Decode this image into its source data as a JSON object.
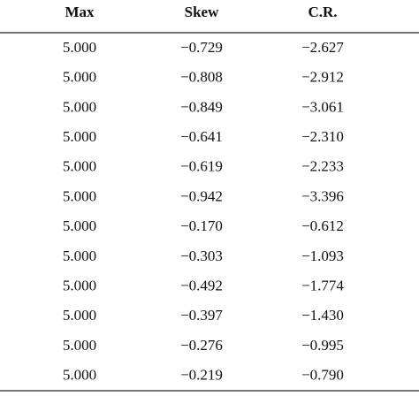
{
  "table": {
    "header": [
      "Max",
      "Skew",
      "C.R."
    ],
    "rows": [
      [
        "5.000",
        "−0.729",
        "−2.627"
      ],
      [
        "5.000",
        "−0.808",
        "−2.912"
      ],
      [
        "5.000",
        "−0.849",
        "−3.061"
      ],
      [
        "5.000",
        "−0.641",
        "−2.310"
      ],
      [
        "5.000",
        "−0.619",
        "−2.233"
      ],
      [
        "5.000",
        "−0.942",
        "−3.396"
      ],
      [
        "5.000",
        "−0.170",
        "−0.612"
      ],
      [
        "5.000",
        "−0.303",
        "−1.093"
      ],
      [
        "5.000",
        "−0.492",
        "−1.774"
      ],
      [
        "5.000",
        "−0.397",
        "−1.430"
      ],
      [
        "5.000",
        "−0.276",
        "−0.995"
      ],
      [
        "5.000",
        "−0.219",
        "−0.790"
      ]
    ]
  }
}
